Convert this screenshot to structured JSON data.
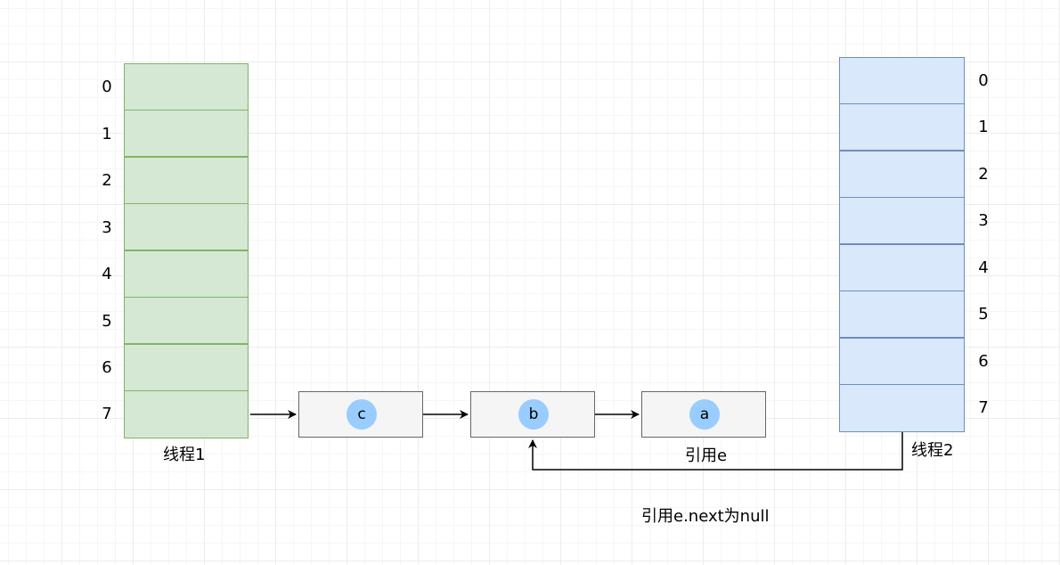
{
  "thread1": {
    "label": "线程1",
    "indices": [
      "0",
      "1",
      "2",
      "3",
      "4",
      "5",
      "6",
      "7"
    ],
    "fill": "#d5e8d4",
    "stroke": "#82b366"
  },
  "thread2": {
    "label": "线程2",
    "indices": [
      "0",
      "1",
      "2",
      "3",
      "4",
      "5",
      "6",
      "7"
    ],
    "fill": "#dae8fc",
    "stroke": "#6c8ebf"
  },
  "nodes": [
    {
      "name": "c"
    },
    {
      "name": "b"
    },
    {
      "name": "a"
    }
  ],
  "node_fill": "#f5f5f5",
  "node_dot_color": "#99ccff",
  "ref_e_label": "引用e",
  "ref_e_next_label": "引用e.next为null"
}
